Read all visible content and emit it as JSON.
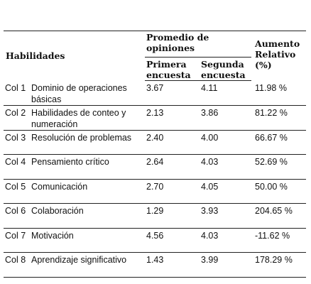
{
  "table": {
    "headers": {
      "habilidades": "Habilidades",
      "promedio": "Promedio de opiniones",
      "primera": "Primera encuesta",
      "segunda": "Segunda encuesta",
      "aumento": "Aumento Relativo (%)"
    },
    "rows": [
      {
        "col": "Col 1",
        "skill": "Dominio de operaciones básicas",
        "first": "3.67",
        "second": "4.11",
        "increase": "11.98 %"
      },
      {
        "col": "Col 2",
        "skill": "Habilidades de conteo y numeración",
        "first": "2.13",
        "second": "3.86",
        "increase": "81.22 %"
      },
      {
        "col": "Col 3",
        "skill": "Resolución de problemas",
        "first": "2.40",
        "second": "4.00",
        "increase": "66.67 %"
      },
      {
        "col": "Col 4",
        "skill": "Pensamiento crítico",
        "first": "2.64",
        "second": "4.03",
        "increase": "52.69 %"
      },
      {
        "col": "Col 5",
        "skill": "Comunicación",
        "first": "2.70",
        "second": "4.05",
        "increase": "50.00 %"
      },
      {
        "col": "Col 6",
        "skill": "Colaboración",
        "first": "1.29",
        "second": "3.93",
        "increase": "204.65 %"
      },
      {
        "col": "Col 7",
        "skill": "Motivación",
        "first": "4.56",
        "second": "4.03",
        "increase": "-11.62 %"
      },
      {
        "col": "Col 8",
        "skill": "Aprendizaje significativo",
        "first": "1.43",
        "second": "3.99",
        "increase": "178.29 %"
      }
    ]
  }
}
